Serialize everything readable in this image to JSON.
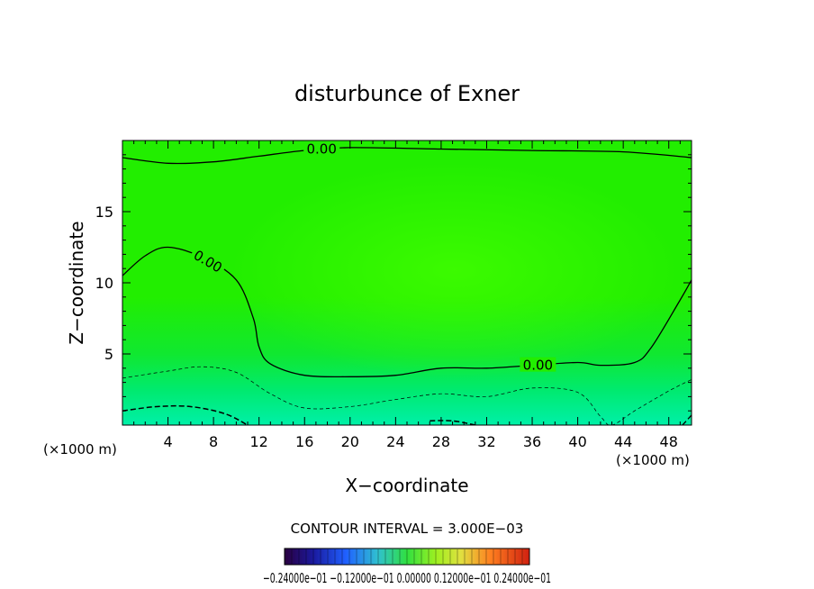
{
  "chart_data": {
    "type": "heatmap",
    "title": "disturbunce of Exner",
    "xlabel": "X−coordinate",
    "ylabel": "Z−coordinate",
    "x_unit_left": "(×1000 m)",
    "x_unit_right": "(×1000 m)",
    "xlim": [
      0,
      50
    ],
    "ylim": [
      0,
      20
    ],
    "x_ticks": [
      4,
      8,
      12,
      16,
      20,
      24,
      28,
      32,
      36,
      40,
      44,
      48
    ],
    "x_tick_labels": [
      "4",
      "8",
      "12",
      "16",
      "20",
      "24",
      "28",
      "32",
      "36",
      "40",
      "44",
      "48"
    ],
    "y_ticks": [
      5,
      10,
      15
    ],
    "y_tick_labels": [
      "5",
      "10",
      "15"
    ],
    "contour_labels": [
      {
        "text": "0.00",
        "x": 17.5,
        "z": 19.4,
        "angle": 0
      },
      {
        "text": "0.00",
        "x": 7.5,
        "z": 11.5,
        "angle": 30
      },
      {
        "text": "0.00",
        "x": 36.5,
        "z": 4.2,
        "angle": 0
      }
    ],
    "zero_contour_top": [
      [
        0,
        18.8
      ],
      [
        4,
        18.4
      ],
      [
        8,
        18.5
      ],
      [
        12,
        18.9
      ],
      [
        16,
        19.3
      ],
      [
        20,
        19.5
      ],
      [
        28,
        19.4
      ],
      [
        36,
        19.3
      ],
      [
        44,
        19.2
      ],
      [
        50,
        18.8
      ]
    ],
    "zero_contour_lower": [
      [
        0,
        10.5
      ],
      [
        2,
        11.9
      ],
      [
        4,
        12.5
      ],
      [
        7,
        11.8
      ],
      [
        10,
        10.2
      ],
      [
        11.5,
        7.5
      ],
      [
        12,
        5.5
      ],
      [
        13,
        4.3
      ],
      [
        16,
        3.5
      ],
      [
        20,
        3.4
      ],
      [
        24,
        3.5
      ],
      [
        28,
        4.0
      ],
      [
        32,
        4.0
      ],
      [
        36,
        4.2
      ],
      [
        40,
        4.4
      ],
      [
        42,
        4.2
      ],
      [
        45,
        4.4
      ],
      [
        46.5,
        5.5
      ],
      [
        49,
        8.8
      ],
      [
        50,
        10.2
      ]
    ],
    "negative_contour_1": [
      [
        0,
        3.3
      ],
      [
        4,
        3.8
      ],
      [
        7,
        4.1
      ],
      [
        10,
        3.7
      ],
      [
        13,
        2.2
      ],
      [
        16,
        1.2
      ],
      [
        20,
        1.3
      ],
      [
        24,
        1.8
      ],
      [
        28,
        2.2
      ],
      [
        32,
        2.0
      ],
      [
        36,
        2.6
      ],
      [
        40,
        2.3
      ],
      [
        42,
        0.6
      ],
      [
        43,
        0
      ],
      [
        45,
        1.0
      ],
      [
        48,
        2.4
      ],
      [
        50,
        3.2
      ]
    ],
    "negative_contour_2": [
      [
        0,
        1.0
      ],
      [
        3,
        1.3
      ],
      [
        6,
        1.3
      ],
      [
        9,
        0.8
      ],
      [
        11,
        0
      ]
    ],
    "negative_contour_3": [
      [
        27,
        0.3
      ],
      [
        29,
        0.3
      ],
      [
        31,
        0
      ]
    ],
    "negative_contour_4": [
      [
        49.2,
        0
      ],
      [
        50,
        0.7
      ]
    ],
    "contour_interval_text": "CONTOUR INTERVAL = 3.000E−03",
    "colorbar_tick_labels_text": "−0.24000e−01  −0.12000e−01  0.00000  0.12000e−01  0.24000e−01",
    "colorbar_range": [
      -0.024,
      0.024
    ],
    "colors": {
      "field_core": "#33ff00",
      "field_mid": "#1aef00",
      "field_low": "#00ee66",
      "field_bottom": "#00f0a0",
      "contour": "#000000"
    }
  }
}
